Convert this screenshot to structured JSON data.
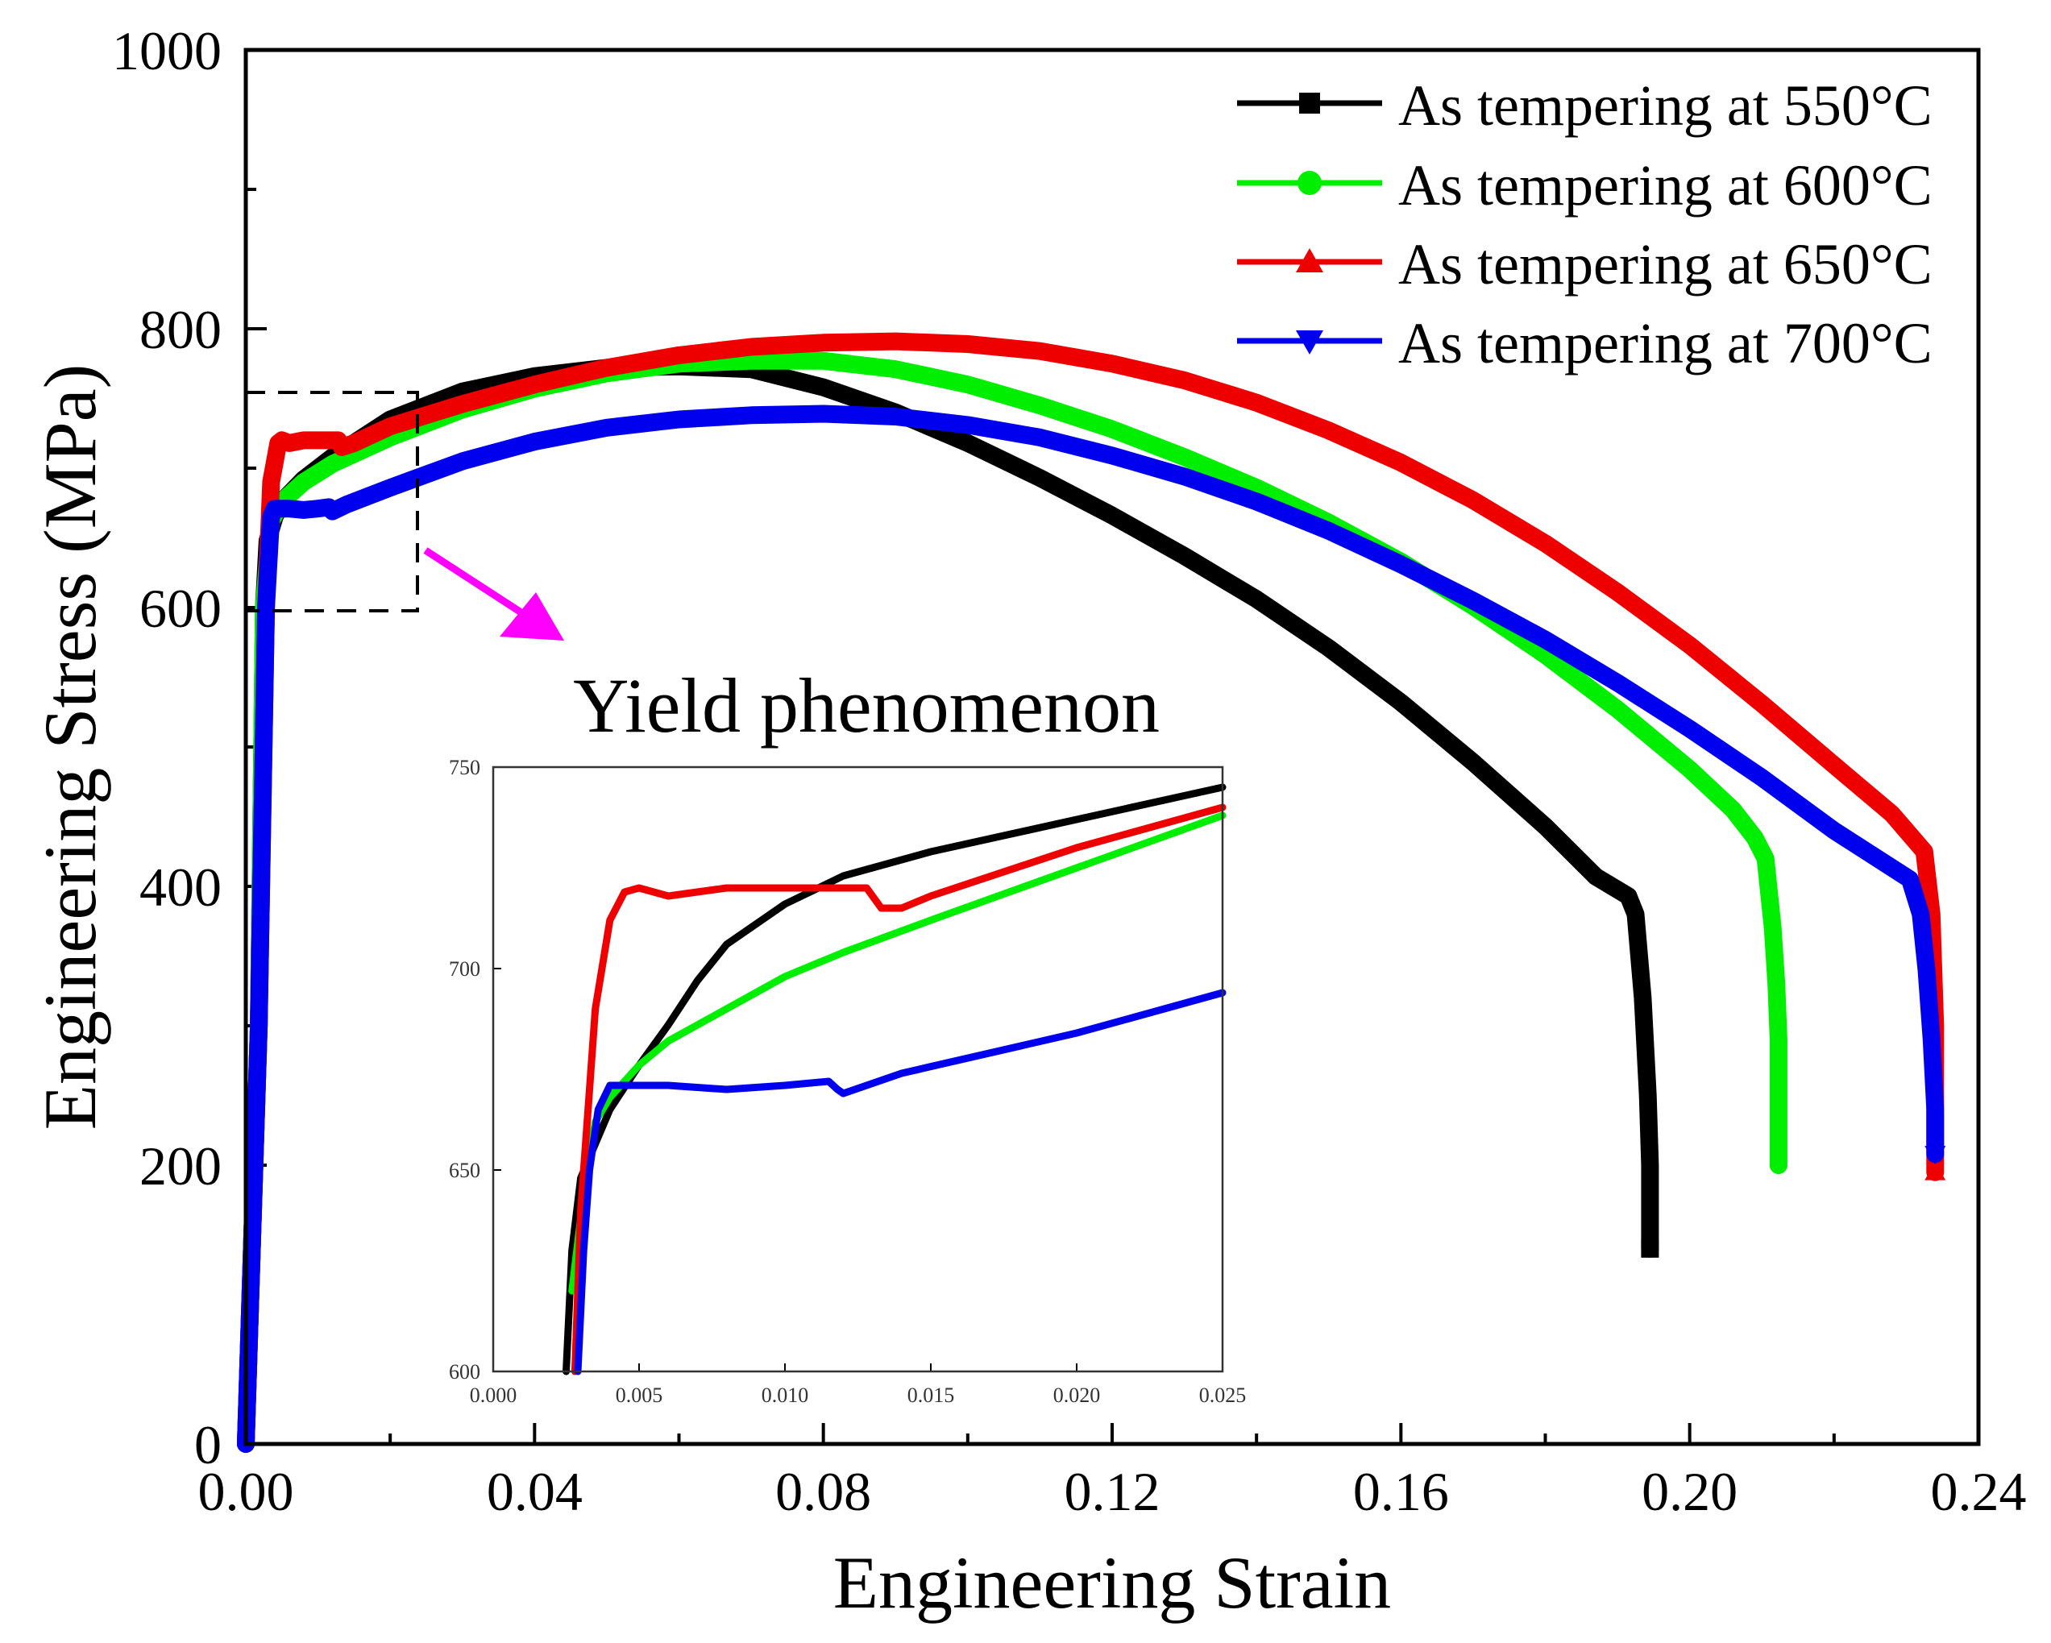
{
  "chart_data": [
    {
      "id": "main",
      "type": "line",
      "xlabel": "Engineering Strain",
      "ylabel": "Engineering Stress (MPa)",
      "xlim": [
        0,
        0.24
      ],
      "ylim": [
        0,
        1000
      ],
      "x_ticks": [
        "0.00",
        "0.04",
        "0.08",
        "0.12",
        "0.16",
        "0.20",
        "0.24"
      ],
      "y_ticks": [
        "0",
        "200",
        "400",
        "600",
        "800",
        "1000"
      ],
      "legend_position": "top-right",
      "series": [
        {
          "name": "As tempering at 550°C",
          "color": "#000000",
          "marker": "square",
          "points": [
            [
              0,
              0
            ],
            [
              0.0018,
              300
            ],
            [
              0.0025,
              600
            ],
            [
              0.003,
              648
            ],
            [
              0.004,
              665
            ],
            [
              0.005,
              676
            ],
            [
              0.008,
              692
            ],
            [
              0.012,
              708
            ],
            [
              0.02,
              735
            ],
            [
              0.03,
              755
            ],
            [
              0.04,
              766
            ],
            [
              0.05,
              772
            ],
            [
              0.06,
              773
            ],
            [
              0.07,
              771
            ],
            [
              0.08,
              758
            ],
            [
              0.09,
              740
            ],
            [
              0.1,
              718
            ],
            [
              0.11,
              693
            ],
            [
              0.12,
              666
            ],
            [
              0.13,
              637
            ],
            [
              0.14,
              606
            ],
            [
              0.15,
              571
            ],
            [
              0.16,
              532
            ],
            [
              0.17,
              489
            ],
            [
              0.18,
              443
            ],
            [
              0.187,
              407
            ],
            [
              0.1915,
              393
            ],
            [
              0.1925,
              380
            ],
            [
              0.1935,
              320
            ],
            [
              0.1942,
              250
            ],
            [
              0.1945,
              200
            ],
            [
              0.1945,
              140
            ]
          ]
        },
        {
          "name": "As tempering at 600°C",
          "color": "#00ee00",
          "marker": "circle",
          "points": [
            [
              0,
              0
            ],
            [
              0.0018,
              300
            ],
            [
              0.0025,
              600
            ],
            [
              0.0035,
              662
            ],
            [
              0.005,
              676
            ],
            [
              0.008,
              690
            ],
            [
              0.012,
              703
            ],
            [
              0.02,
              722
            ],
            [
              0.03,
              742
            ],
            [
              0.04,
              757
            ],
            [
              0.05,
              768
            ],
            [
              0.06,
              775
            ],
            [
              0.07,
              777
            ],
            [
              0.08,
              777
            ],
            [
              0.09,
              771
            ],
            [
              0.1,
              760
            ],
            [
              0.11,
              745
            ],
            [
              0.12,
              728
            ],
            [
              0.13,
              708
            ],
            [
              0.14,
              686
            ],
            [
              0.15,
              661
            ],
            [
              0.16,
              633
            ],
            [
              0.17,
              601
            ],
            [
              0.18,
              566
            ],
            [
              0.19,
              527
            ],
            [
              0.2,
              484
            ],
            [
              0.206,
              455
            ],
            [
              0.209,
              435
            ],
            [
              0.2105,
              420
            ],
            [
              0.2115,
              370
            ],
            [
              0.212,
              330
            ],
            [
              0.2123,
              290
            ],
            [
              0.2123,
              200
            ]
          ]
        },
        {
          "name": "As tempering at 650°C",
          "color": "#ee0000",
          "marker": "triangle",
          "points": [
            [
              0,
              0
            ],
            [
              0.0018,
              300
            ],
            [
              0.0028,
              600
            ],
            [
              0.0035,
              690
            ],
            [
              0.0045,
              718
            ],
            [
              0.005,
              720
            ],
            [
              0.006,
              718
            ],
            [
              0.008,
              720
            ],
            [
              0.012,
              720
            ],
            [
              0.0128,
              720
            ],
            [
              0.0133,
              715
            ],
            [
              0.015,
              718
            ],
            [
              0.02,
              730
            ],
            [
              0.03,
              746
            ],
            [
              0.04,
              760
            ],
            [
              0.05,
              772
            ],
            [
              0.06,
              781
            ],
            [
              0.07,
              787
            ],
            [
              0.08,
              790
            ],
            [
              0.09,
              791
            ],
            [
              0.1,
              789
            ],
            [
              0.11,
              784
            ],
            [
              0.12,
              775
            ],
            [
              0.13,
              763
            ],
            [
              0.14,
              747
            ],
            [
              0.15,
              727
            ],
            [
              0.16,
              704
            ],
            [
              0.17,
              677
            ],
            [
              0.18,
              646
            ],
            [
              0.19,
              611
            ],
            [
              0.2,
              573
            ],
            [
              0.21,
              531
            ],
            [
              0.22,
              487
            ],
            [
              0.228,
              452
            ],
            [
              0.2325,
              425
            ],
            [
              0.2335,
              380
            ],
            [
              0.234,
              300
            ],
            [
              0.234,
              195
            ]
          ]
        },
        {
          "name": "As tempering at 700°C",
          "color": "#0000ee",
          "marker": "triangle-down",
          "points": [
            [
              0,
              0
            ],
            [
              0.0018,
              300
            ],
            [
              0.0028,
              600
            ],
            [
              0.0035,
              665
            ],
            [
              0.004,
              671
            ],
            [
              0.006,
              671
            ],
            [
              0.008,
              670
            ],
            [
              0.01,
              671
            ],
            [
              0.0115,
              672
            ],
            [
              0.012,
              669
            ],
            [
              0.014,
              674
            ],
            [
              0.02,
              686
            ],
            [
              0.03,
              705
            ],
            [
              0.04,
              719
            ],
            [
              0.05,
              729
            ],
            [
              0.06,
              735
            ],
            [
              0.07,
              738
            ],
            [
              0.08,
              739
            ],
            [
              0.09,
              737
            ],
            [
              0.1,
              731
            ],
            [
              0.11,
              722
            ],
            [
              0.12,
              709
            ],
            [
              0.13,
              694
            ],
            [
              0.14,
              676
            ],
            [
              0.15,
              655
            ],
            [
              0.16,
              631
            ],
            [
              0.17,
              605
            ],
            [
              0.18,
              577
            ],
            [
              0.19,
              546
            ],
            [
              0.2,
              513
            ],
            [
              0.21,
              478
            ],
            [
              0.22,
              440
            ],
            [
              0.2305,
              405
            ],
            [
              0.232,
              380
            ],
            [
              0.2328,
              340
            ],
            [
              0.2335,
              290
            ],
            [
              0.234,
              240
            ],
            [
              0.234,
              208
            ]
          ]
        }
      ]
    },
    {
      "id": "inset",
      "type": "line",
      "title": "Yield phenomenon",
      "xlim": [
        0,
        0.025
      ],
      "ylim": [
        600,
        750
      ],
      "x_ticks": [
        "0.000",
        "0.005",
        "0.010",
        "0.015",
        "0.020",
        "0.025"
      ],
      "y_ticks": [
        "600",
        "650",
        "700",
        "750"
      ],
      "series": [
        {
          "name": "As tempering at 550°C",
          "color": "#000000",
          "points": [
            [
              0.0025,
              600
            ],
            [
              0.0027,
              630
            ],
            [
              0.003,
              648
            ],
            [
              0.004,
              665
            ],
            [
              0.005,
              676
            ],
            [
              0.006,
              686
            ],
            [
              0.007,
              697
            ],
            [
              0.008,
              706
            ],
            [
              0.01,
              716
            ],
            [
              0.012,
              723
            ],
            [
              0.015,
              729
            ],
            [
              0.02,
              737
            ],
            [
              0.025,
              745
            ]
          ]
        },
        {
          "name": "As tempering at 600°C",
          "color": "#00ee00",
          "points": [
            [
              0.0027,
              620
            ],
            [
              0.0032,
              650
            ],
            [
              0.0035,
              662
            ],
            [
              0.004,
              668
            ],
            [
              0.005,
              676
            ],
            [
              0.006,
              682
            ],
            [
              0.008,
              690
            ],
            [
              0.01,
              698
            ],
            [
              0.012,
              704
            ],
            [
              0.015,
              712
            ],
            [
              0.02,
              725
            ],
            [
              0.025,
              738
            ]
          ]
        },
        {
          "name": "As tempering at 650°C",
          "color": "#ee0000",
          "points": [
            [
              0.0028,
              600
            ],
            [
              0.003,
              640
            ],
            [
              0.0033,
              670
            ],
            [
              0.0035,
              690
            ],
            [
              0.004,
              712
            ],
            [
              0.0045,
              719
            ],
            [
              0.005,
              720
            ],
            [
              0.006,
              718
            ],
            [
              0.008,
              720
            ],
            [
              0.01,
              720
            ],
            [
              0.0125,
              720
            ],
            [
              0.0128,
              720
            ],
            [
              0.0133,
              715
            ],
            [
              0.014,
              715
            ],
            [
              0.015,
              718
            ],
            [
              0.02,
              730
            ],
            [
              0.025,
              740
            ]
          ]
        },
        {
          "name": "As tempering at 700°C",
          "color": "#0000ee",
          "points": [
            [
              0.0029,
              600
            ],
            [
              0.0031,
              630
            ],
            [
              0.0033,
              650
            ],
            [
              0.0036,
              665
            ],
            [
              0.004,
              671
            ],
            [
              0.006,
              671
            ],
            [
              0.008,
              670
            ],
            [
              0.01,
              671
            ],
            [
              0.0115,
              672
            ],
            [
              0.0118,
              670
            ],
            [
              0.012,
              669
            ],
            [
              0.014,
              674
            ],
            [
              0.02,
              684
            ],
            [
              0.025,
              694
            ]
          ]
        }
      ]
    }
  ]
}
